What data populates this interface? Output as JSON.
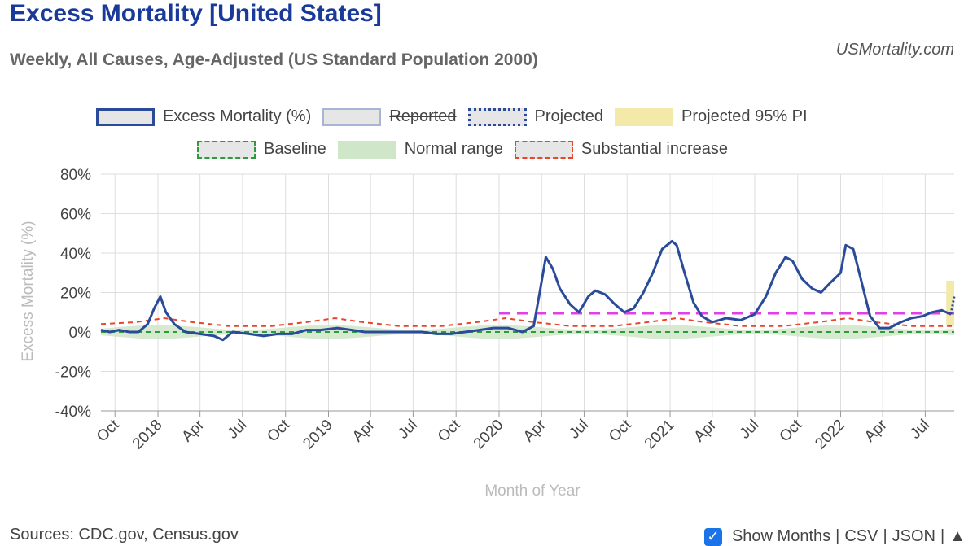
{
  "header": {
    "title": "Excess Mortality [United States]",
    "subtitle": "Weekly, All Causes, Age-Adjusted (US Standard Population 2000)",
    "site": "USMortality.com"
  },
  "legend": {
    "excess": "Excess Mortality (%)",
    "reported": "Reported",
    "projected": "Projected",
    "projected_pi": "Projected 95% PI",
    "baseline": "Baseline",
    "normal_range": "Normal range",
    "substantial": "Substantial increase"
  },
  "colors": {
    "excess": "#2a4a9a",
    "baseline": "#2e9a3e",
    "normal_range": "#cfe6c8",
    "substantial": "#e8452a",
    "threshold": "#e040e8",
    "projected_pi": "#f3e9a8",
    "grid": "#dddddd"
  },
  "footer": {
    "sources": "Sources: CDC.gov, Census.gov",
    "show_months": "Show Months",
    "csv": "CSV",
    "json": "JSON",
    "up_arrow": "▲"
  },
  "chart_data": {
    "type": "line",
    "xlabel": "Month of Year",
    "ylabel": "Excess Mortality (%)",
    "ylim": [
      -40,
      80
    ],
    "yticks": [
      "80%",
      "60%",
      "40%",
      "20%",
      "0%",
      "-20%",
      "-40%"
    ],
    "xticks": [
      "Oct",
      "2018",
      "Apr",
      "Jul",
      "Oct",
      "2019",
      "Apr",
      "Jul",
      "Oct",
      "2020",
      "Apr",
      "Jul",
      "Oct",
      "2021",
      "Apr",
      "Jul",
      "Oct",
      "2022",
      "Apr",
      "Jul"
    ],
    "x_range": [
      "2017-09-01",
      "2022-09-01"
    ],
    "legend_placement": "top",
    "grid": true,
    "series": [
      {
        "name": "Excess Mortality (%)",
        "points": [
          [
            "2017-09-01",
            1
          ],
          [
            "2017-09-20",
            0
          ],
          [
            "2017-10-10",
            1
          ],
          [
            "2017-11-01",
            0
          ],
          [
            "2017-11-20",
            0
          ],
          [
            "2017-12-10",
            4
          ],
          [
            "2017-12-24",
            12
          ],
          [
            "2018-01-06",
            18
          ],
          [
            "2018-01-18",
            10
          ],
          [
            "2018-02-05",
            4
          ],
          [
            "2018-03-01",
            0
          ],
          [
            "2018-04-01",
            -1
          ],
          [
            "2018-05-01",
            -2
          ],
          [
            "2018-05-20",
            -4
          ],
          [
            "2018-06-10",
            0
          ],
          [
            "2018-07-15",
            -1
          ],
          [
            "2018-08-15",
            -2
          ],
          [
            "2018-09-15",
            -1
          ],
          [
            "2018-10-15",
            -1
          ],
          [
            "2018-11-15",
            1
          ],
          [
            "2018-12-15",
            1
          ],
          [
            "2019-01-20",
            2
          ],
          [
            "2019-02-20",
            1
          ],
          [
            "2019-03-20",
            0
          ],
          [
            "2019-04-20",
            0
          ],
          [
            "2019-05-20",
            0
          ],
          [
            "2019-06-20",
            0
          ],
          [
            "2019-07-20",
            0
          ],
          [
            "2019-08-20",
            -1
          ],
          [
            "2019-09-20",
            -1
          ],
          [
            "2019-10-20",
            0
          ],
          [
            "2019-11-20",
            1
          ],
          [
            "2019-12-20",
            2
          ],
          [
            "2020-01-20",
            2
          ],
          [
            "2020-02-20",
            0
          ],
          [
            "2020-03-15",
            3
          ],
          [
            "2020-03-28",
            20
          ],
          [
            "2020-04-10",
            38
          ],
          [
            "2020-04-25",
            32
          ],
          [
            "2020-05-10",
            22
          ],
          [
            "2020-06-01",
            14
          ],
          [
            "2020-06-20",
            10
          ],
          [
            "2020-07-10",
            18
          ],
          [
            "2020-07-25",
            21
          ],
          [
            "2020-08-15",
            19
          ],
          [
            "2020-09-05",
            14
          ],
          [
            "2020-09-25",
            10
          ],
          [
            "2020-10-15",
            12
          ],
          [
            "2020-11-05",
            20
          ],
          [
            "2020-11-25",
            30
          ],
          [
            "2020-12-15",
            42
          ],
          [
            "2021-01-05",
            46
          ],
          [
            "2021-01-15",
            44
          ],
          [
            "2021-02-01",
            30
          ],
          [
            "2021-02-20",
            15
          ],
          [
            "2021-03-10",
            8
          ],
          [
            "2021-04-01",
            5
          ],
          [
            "2021-05-01",
            7
          ],
          [
            "2021-06-01",
            6
          ],
          [
            "2021-07-01",
            9
          ],
          [
            "2021-07-25",
            18
          ],
          [
            "2021-08-15",
            30
          ],
          [
            "2021-09-05",
            38
          ],
          [
            "2021-09-20",
            36
          ],
          [
            "2021-10-10",
            27
          ],
          [
            "2021-11-01",
            22
          ],
          [
            "2021-11-20",
            20
          ],
          [
            "2021-12-10",
            25
          ],
          [
            "2022-01-01",
            30
          ],
          [
            "2022-01-12",
            44
          ],
          [
            "2022-01-28",
            42
          ],
          [
            "2022-02-15",
            25
          ],
          [
            "2022-03-05",
            8
          ],
          [
            "2022-03-25",
            2
          ],
          [
            "2022-04-15",
            2
          ],
          [
            "2022-05-10",
            5
          ],
          [
            "2022-06-01",
            7
          ],
          [
            "2022-06-25",
            8
          ],
          [
            "2022-07-15",
            10
          ],
          [
            "2022-08-05",
            11
          ],
          [
            "2022-08-25",
            9
          ]
        ]
      },
      {
        "name": "Baseline",
        "points": [
          [
            "2017-09-01",
            0
          ],
          [
            "2022-09-01",
            0
          ]
        ]
      },
      {
        "name": "Substantial increase",
        "points": [
          [
            "2017-09-01",
            4
          ],
          [
            "2017-11-15",
            5
          ],
          [
            "2018-01-15",
            7
          ],
          [
            "2018-03-15",
            5
          ],
          [
            "2018-06-01",
            3
          ],
          [
            "2018-09-01",
            3
          ],
          [
            "2018-11-15",
            5
          ],
          [
            "2019-01-15",
            7
          ],
          [
            "2019-03-15",
            5
          ],
          [
            "2019-06-01",
            3
          ],
          [
            "2019-09-01",
            3
          ],
          [
            "2019-11-15",
            5
          ],
          [
            "2020-01-15",
            7
          ],
          [
            "2020-03-15",
            5
          ],
          [
            "2020-06-01",
            3
          ],
          [
            "2020-09-01",
            3
          ],
          [
            "2020-11-15",
            5
          ],
          [
            "2021-01-15",
            7
          ],
          [
            "2021-03-15",
            5
          ],
          [
            "2021-06-01",
            3
          ],
          [
            "2021-09-01",
            3
          ],
          [
            "2021-11-15",
            5
          ],
          [
            "2022-01-15",
            7
          ],
          [
            "2022-03-15",
            5
          ],
          [
            "2022-06-01",
            3
          ],
          [
            "2022-09-01",
            3
          ]
        ]
      },
      {
        "name": "threshold",
        "points": [
          [
            "2020-01-01",
            9.5
          ],
          [
            "2022-09-01",
            9.5
          ]
        ]
      }
    ],
    "normal_range": {
      "low": -3,
      "high": 3
    },
    "projected_pi": {
      "start": "2022-08-15",
      "end": "2022-09-01",
      "low": 3,
      "high": 26
    }
  }
}
